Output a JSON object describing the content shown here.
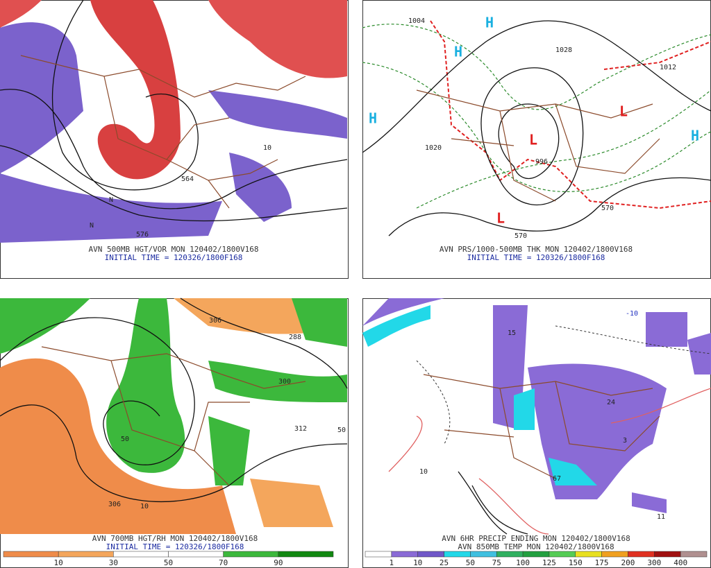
{
  "panels": [
    {
      "caption": "AVN 500MB HGT/VOR MON 120402/1800V168",
      "initial_time": "INITIAL TIME = 120326/1800F168",
      "labels": [
        "564",
        "576",
        "10",
        "N",
        "N"
      ]
    },
    {
      "caption": "AVN PRS/1000-500MB THK MON 120402/1800V168",
      "initial_time": "INITIAL TIME = 120326/1800F168",
      "labels": [
        "H",
        "H",
        "H",
        "H",
        "L",
        "L",
        "L",
        "1028",
        "1020",
        "1012",
        "996",
        "570",
        "570",
        "1004"
      ]
    },
    {
      "caption": "AVN 700MB HGT/RH MON 120402/1800V168",
      "initial_time": "INITIAL TIME = 120326/1800F168",
      "labels": [
        "306",
        "312",
        "300",
        "288",
        "50",
        "50",
        "10",
        "306"
      ]
    },
    {
      "caption": "AVN 6HR PRECIP ENDING MON 120402/1800V168",
      "initial_time": "AVN 850MB TEMP MON 120402/1800V168",
      "labels": [
        "15",
        "24",
        "3",
        "67",
        "10",
        "-10",
        "11"
      ]
    }
  ],
  "colorbars": [
    {
      "labels": [
        "10",
        "30",
        "50",
        "70",
        "90"
      ]
    },
    {
      "labels": [
        "1",
        "10",
        "25",
        "50",
        "75",
        "100",
        "125",
        "150",
        "175",
        "200",
        "300",
        "400"
      ]
    }
  ]
}
